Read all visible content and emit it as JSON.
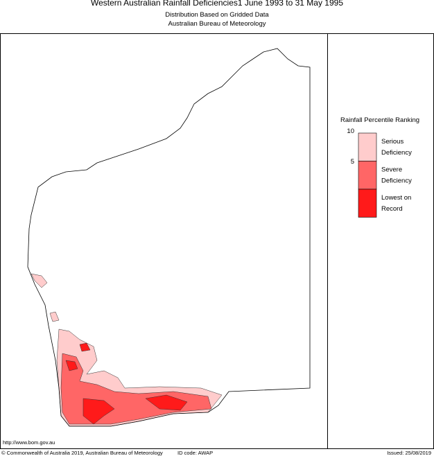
{
  "header": {
    "title": "Western Australian Rainfall Deficiencies1 June 1993 to 31 May 1995",
    "subtitle": "Distribution Based on Gridded Data",
    "source": "Australian Bureau of Meteorology"
  },
  "legend": {
    "title": "Rainfall Percentile Ranking",
    "ticks": [
      10,
      5
    ],
    "items": [
      {
        "label": [
          "Serious",
          "Deficiency"
        ],
        "color": "#ffcccc"
      },
      {
        "label": [
          "Severe",
          "Deficiency"
        ],
        "color": "#ff6666"
      },
      {
        "label": [
          "Lowest on",
          "Record"
        ],
        "color": "#ff1a1a"
      }
    ]
  },
  "footer": {
    "url": "http://www.bom.gov.au",
    "copyright": "© Commonwealth of Australia 2019, Australian Bureau of Meteorology",
    "id_code": "ID code: AWAP",
    "issued": "Issued: 25/08/2019"
  }
}
